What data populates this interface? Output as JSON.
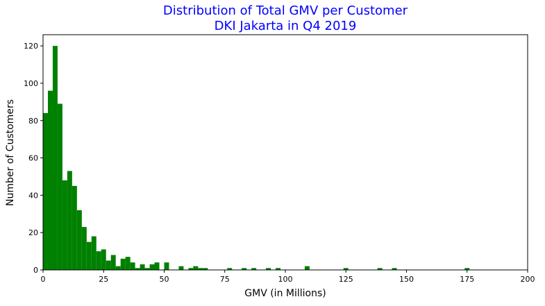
{
  "chart_data": {
    "type": "histogram",
    "title": [
      "Distribution of Total GMV per Customer",
      "DKI Jakarta in Q4 2019"
    ],
    "xlabel": "GMV (in Millions)",
    "ylabel": "Number of Customers",
    "bins": [
      0,
      2,
      4,
      6,
      8,
      10,
      12,
      14,
      16,
      18,
      20,
      22,
      24,
      26,
      28,
      30,
      32,
      34,
      36,
      38,
      40,
      42,
      44,
      46,
      48,
      50,
      52,
      54,
      56,
      58,
      60,
      62,
      64,
      66,
      68,
      70,
      72,
      74,
      76,
      78,
      80,
      82,
      84,
      86,
      88,
      90,
      92,
      94,
      96,
      98,
      100,
      102,
      104,
      106,
      108,
      110,
      112,
      114,
      116,
      118,
      120,
      122,
      124,
      126,
      128,
      130,
      132,
      134,
      136,
      138,
      140,
      142,
      144,
      146,
      148,
      150,
      152,
      154,
      156,
      158,
      160,
      162,
      164,
      166,
      168,
      170,
      172,
      174,
      176,
      178,
      180,
      182,
      184,
      186,
      188,
      190,
      192,
      194,
      196,
      198,
      200
    ],
    "counts": [
      84,
      96,
      120,
      89,
      48,
      53,
      45,
      32,
      23,
      15,
      18,
      10,
      11,
      5,
      8,
      2,
      6,
      7,
      4,
      1,
      3,
      1,
      3,
      4,
      0,
      4,
      0,
      0,
      2,
      0,
      1,
      2,
      1,
      1,
      0,
      0,
      0,
      0,
      1,
      0,
      0,
      1,
      0,
      1,
      0,
      0,
      1,
      0,
      1,
      0,
      0,
      0,
      0,
      0,
      2,
      0,
      0,
      0,
      0,
      0,
      0,
      0,
      1,
      0,
      0,
      0,
      0,
      0,
      0,
      1,
      0,
      0,
      1,
      0,
      0,
      0,
      0,
      0,
      0,
      0,
      0,
      0,
      0,
      0,
      0,
      0,
      0,
      1,
      0,
      0,
      0,
      0,
      0,
      0,
      0,
      0,
      0,
      0,
      0,
      0
    ],
    "color": "#008000",
    "title_color": "#0000ff",
    "xlim": [
      0,
      200
    ],
    "xticks": [
      0,
      25,
      50,
      75,
      100,
      125,
      150,
      175,
      200
    ],
    "ylim": [
      0,
      126
    ],
    "yticks": [
      0,
      20,
      40,
      60,
      80,
      100,
      120
    ],
    "grid": false
  }
}
